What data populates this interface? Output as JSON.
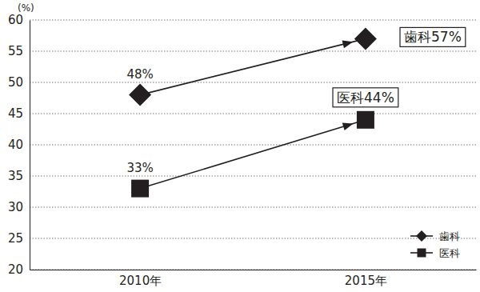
{
  "chart_data": {
    "type": "line",
    "y_label": "(%)",
    "categories": [
      "2010年",
      "2015年"
    ],
    "series": [
      {
        "name": "歯科",
        "color": "#231f20",
        "marker": "diamond",
        "values": [
          48,
          57
        ],
        "value_labels": [
          "48%",
          "歯科57%"
        ]
      },
      {
        "name": "医科",
        "color": "#231f20",
        "marker": "square",
        "values": [
          33,
          44
        ],
        "value_labels": [
          "33%",
          "医科44%"
        ]
      }
    ],
    "ylim": [
      20,
      60
    ],
    "yticks": [
      20,
      25,
      30,
      35,
      40,
      45,
      50,
      55,
      60
    ],
    "grid": true,
    "legend": "lower right",
    "data_labels": true
  }
}
